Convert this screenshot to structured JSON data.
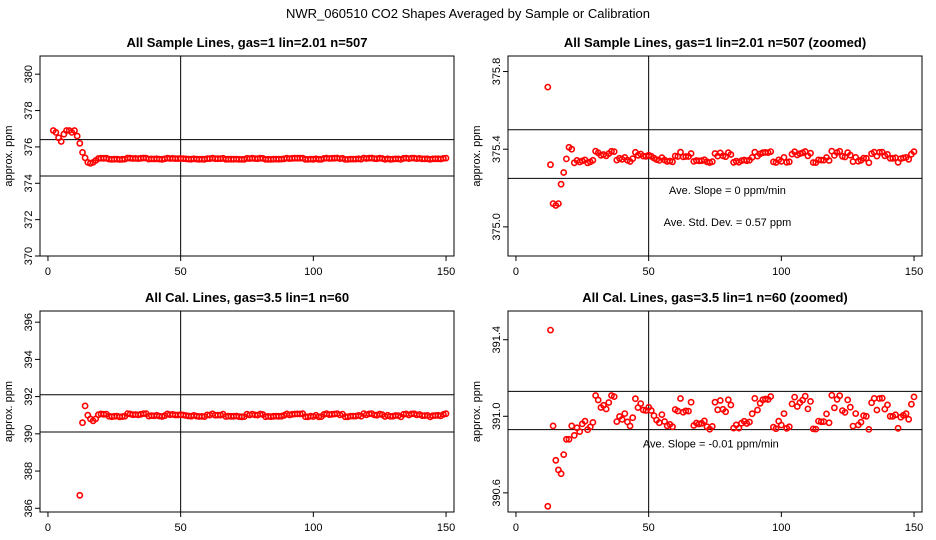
{
  "page_title": "NWR_060510  CO2 Shapes Averaged by Sample or Calibration",
  "colors": {
    "points": "#ff0000",
    "lines": "#000000",
    "background": "#ffffff"
  },
  "chart_data": [
    {
      "type": "scatter",
      "title": "All Sample Lines, gas=1 lin=2.01 n=507",
      "ylabel": "approx. ppm",
      "xlim": [
        -3,
        153
      ],
      "ylim": [
        370,
        381
      ],
      "xticks": [
        0,
        50,
        100,
        150
      ],
      "yticks": [
        370,
        372,
        374,
        376,
        378,
        380
      ],
      "ytick_labels": [
        "370",
        "372",
        "374",
        "376",
        "378",
        "380"
      ],
      "vline": 50,
      "hlines": [
        376.4,
        374.4
      ],
      "annotations": [],
      "series": [
        {
          "x": [
            2,
            3,
            4,
            5,
            6,
            7,
            8,
            9,
            10,
            11,
            12,
            13,
            14,
            15,
            16,
            17,
            18
          ],
          "y": [
            376.9,
            376.8,
            376.5,
            376.3,
            376.7,
            376.9,
            376.9,
            376.8,
            376.9,
            376.6,
            376.2,
            375.7,
            375.4,
            375.15,
            375.1,
            375.15,
            375.25
          ]
        },
        {
          "x_start": 19,
          "x_end": 150,
          "y": 375.35,
          "jitter": 0.04
        }
      ]
    },
    {
      "type": "scatter",
      "title": "All Sample Lines, gas=1 lin=2.01 n=507 (zoomed)",
      "ylabel": "approx. ppm",
      "xlim": [
        -3,
        153
      ],
      "ylim": [
        374.85,
        375.88
      ],
      "xticks": [
        0,
        50,
        100,
        150
      ],
      "yticks": [
        375.0,
        375.4,
        375.8
      ],
      "ytick_labels": [
        "375.0",
        "375.4",
        "375.8"
      ],
      "vline": 50,
      "hlines": [
        375.5,
        375.25
      ],
      "annotations": [
        "Ave. Slope =  0  ppm/min",
        "Ave. Std. Dev. =  0.57  ppm"
      ],
      "series": [
        {
          "x": [
            12,
            13,
            14,
            15,
            16,
            17,
            18,
            19,
            20,
            21,
            22
          ],
          "y": [
            375.72,
            375.32,
            375.12,
            375.11,
            375.12,
            375.22,
            375.28,
            375.35,
            375.41,
            375.4,
            375.33
          ]
        },
        {
          "x_start": 23,
          "x_end": 150,
          "y": 375.36,
          "jitter": 0.03
        }
      ]
    },
    {
      "type": "scatter",
      "title": "All Cal. Lines, gas=3.5 lin=1 n=60",
      "ylabel": "approx. ppm",
      "xlim": [
        -3,
        153
      ],
      "ylim": [
        385.8,
        396.6
      ],
      "xticks": [
        0,
        50,
        100,
        150
      ],
      "yticks": [
        386,
        388,
        390,
        392,
        394,
        396
      ],
      "ytick_labels": [
        "386",
        "388",
        "390",
        "392",
        "394",
        "396"
      ],
      "vline": 50,
      "hlines": [
        392.1,
        390.1
      ],
      "annotations": [],
      "series": [
        {
          "x": [
            12,
            13,
            14,
            15,
            16,
            17,
            18
          ],
          "y": [
            386.7,
            390.6,
            391.5,
            391.0,
            390.8,
            390.7,
            390.8
          ]
        },
        {
          "x_start": 19,
          "x_end": 150,
          "y": 391.0,
          "jitter": 0.09
        }
      ]
    },
    {
      "type": "scatter",
      "title": "All Cal. Lines, gas=3.5 lin=1 n=60 (zoomed)",
      "ylabel": "approx. ppm",
      "xlim": [
        -3,
        153
      ],
      "ylim": [
        390.5,
        391.55
      ],
      "xticks": [
        0,
        50,
        100,
        150
      ],
      "yticks": [
        390.6,
        391.0,
        391.4
      ],
      "ytick_labels": [
        "390.6",
        "391.0",
        "391.4"
      ],
      "vline": 50,
      "hlines": [
        391.13,
        390.93
      ],
      "annotations": [
        "Ave. Slope =  -0.01  ppm/min"
      ],
      "series": [
        {
          "x": [
            12,
            13,
            14,
            15,
            16,
            17,
            18,
            19,
            20,
            21,
            22,
            23,
            24,
            25
          ],
          "y": [
            390.53,
            391.45,
            390.95,
            390.77,
            390.72,
            390.7,
            390.8,
            390.88,
            390.88,
            390.95,
            390.9,
            390.94,
            390.92,
            390.96
          ]
        },
        {
          "x_start": 26,
          "x_end": 150,
          "y": 391.02,
          "jitter": 0.09
        }
      ]
    }
  ]
}
